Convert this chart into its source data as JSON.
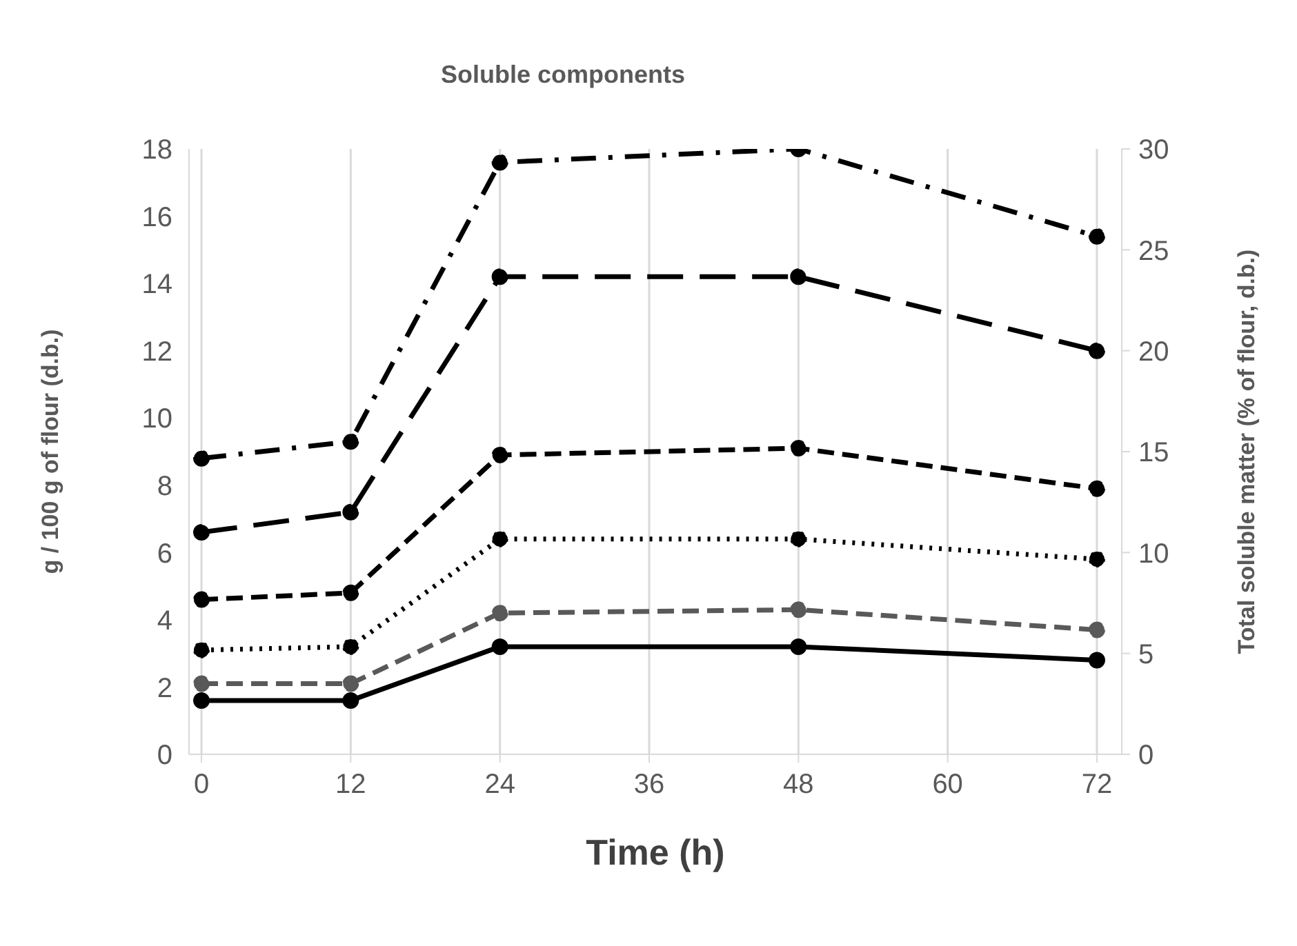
{
  "chart_data": {
    "type": "line",
    "title": "Soluble components",
    "xlabel": "Time (h)",
    "ylabel": "g / 100 g of flour (d.b.)",
    "y2label": "Total soluble matter (% of flour, d.b.)",
    "x": [
      0,
      12,
      24,
      48,
      72
    ],
    "series": [
      {
        "color": "#000000",
        "line_style": "dashdot",
        "values": [
          8.8,
          9.3,
          17.6,
          18.0,
          15.4
        ]
      },
      {
        "color": "#000000",
        "line_style": "longdash",
        "values": [
          6.6,
          7.2,
          14.2,
          14.2,
          12.0
        ]
      },
      {
        "color": "#000000",
        "line_style": "dashed",
        "values": [
          4.6,
          4.8,
          8.9,
          9.1,
          7.9
        ]
      },
      {
        "color": "#000000",
        "line_style": "dotted",
        "values": [
          3.1,
          3.2,
          6.4,
          6.4,
          5.8
        ]
      },
      {
        "color": "#595959",
        "line_style": "dashed",
        "values": [
          2.1,
          2.1,
          4.2,
          4.3,
          3.7
        ]
      },
      {
        "color": "#000000",
        "line_style": "solid",
        "values": [
          1.6,
          1.6,
          3.2,
          3.2,
          2.8
        ]
      }
    ],
    "xlim": [
      -1,
      74
    ],
    "xticks": [
      0,
      12,
      24,
      36,
      48,
      60,
      72
    ],
    "ylim": [
      0,
      18
    ],
    "yticks": [
      0,
      2,
      4,
      6,
      8,
      10,
      12,
      14,
      16,
      18
    ],
    "y2lim": [
      0,
      30
    ],
    "y2ticks": [
      0,
      5,
      10,
      15,
      20,
      25,
      30
    ],
    "grid": true,
    "marker": "circle",
    "legend": false
  }
}
